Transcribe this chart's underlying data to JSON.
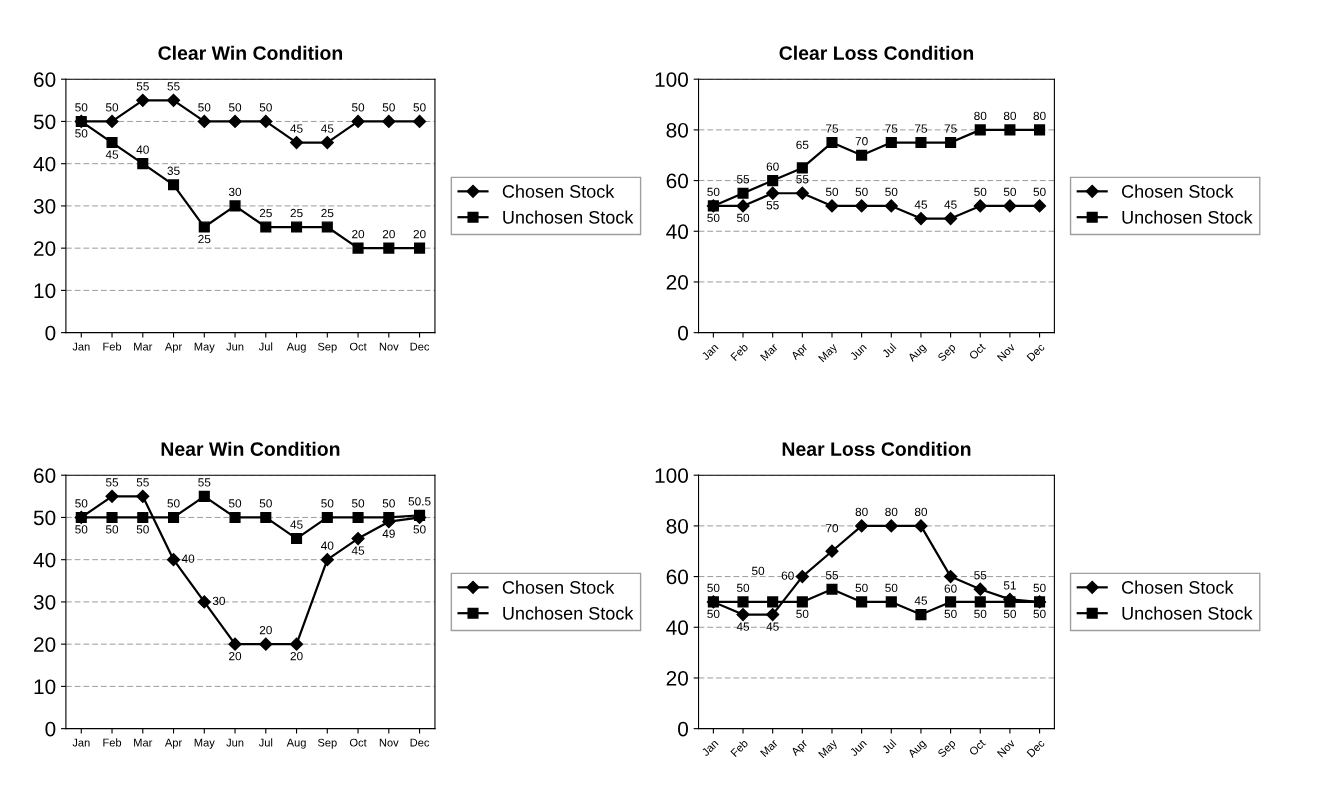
{
  "chart_data": [
    {
      "type": "line",
      "title": "Clear Win Condition",
      "categories": [
        "Jan",
        "Feb",
        "Mar",
        "Apr",
        "May",
        "Jun",
        "Jul",
        "Aug",
        "Sep",
        "Oct",
        "Nov",
        "Dec"
      ],
      "ylim": [
        0,
        60
      ],
      "yticks": [
        0,
        10,
        20,
        30,
        40,
        50,
        60
      ],
      "grid": "y",
      "legend": "right",
      "data_labels": true,
      "series": [
        {
          "name": "Chosen Stock",
          "color": "#000000",
          "marker": "diamond",
          "values": [
            50,
            50,
            55,
            55,
            50,
            50,
            50,
            45,
            45,
            50,
            50,
            50
          ]
        },
        {
          "name": "Unchosen Stock",
          "color": "#000000",
          "marker": "square",
          "values": [
            50,
            45,
            40,
            35,
            25,
            30,
            25,
            25,
            25,
            20,
            20,
            20
          ]
        }
      ]
    },
    {
      "type": "line",
      "title": "Clear Loss Condition",
      "categories": [
        "Jan",
        "Feb",
        "Mar",
        "Apr",
        "May",
        "Jun",
        "Jul",
        "Aug",
        "Sep",
        "Oct",
        "Nov",
        "Dec"
      ],
      "ylim": [
        0,
        100
      ],
      "yticks": [
        0,
        20,
        40,
        60,
        80,
        100
      ],
      "grid": "y",
      "legend": "right",
      "data_labels": true,
      "series": [
        {
          "name": "Chosen Stock",
          "color": "#000000",
          "marker": "diamond",
          "values": [
            50,
            50,
            55,
            55,
            50,
            50,
            50,
            45,
            45,
            50,
            50,
            50
          ]
        },
        {
          "name": "Unchosen Stock",
          "color": "#000000",
          "marker": "square",
          "values": [
            50,
            55,
            60,
            65,
            75,
            70,
            75,
            75,
            75,
            80,
            80,
            80
          ]
        }
      ]
    },
    {
      "type": "line",
      "title": "Near Win Condition",
      "categories": [
        "Jan",
        "Feb",
        "Mar",
        "Apr",
        "May",
        "Jun",
        "Jul",
        "Aug",
        "Sep",
        "Oct",
        "Nov",
        "Dec"
      ],
      "ylim": [
        0,
        60
      ],
      "yticks": [
        0,
        10,
        20,
        30,
        40,
        50,
        60
      ],
      "grid": "y",
      "legend": "right",
      "data_labels": true,
      "series": [
        {
          "name": "Chosen Stock",
          "color": "#000000",
          "marker": "diamond",
          "values": [
            50,
            55,
            55,
            40,
            30,
            20,
            20,
            20,
            40,
            45,
            49,
            50
          ]
        },
        {
          "name": "Unchosen Stock",
          "color": "#000000",
          "marker": "square",
          "values": [
            50,
            50,
            50,
            50,
            55,
            50,
            50,
            45,
            50,
            50,
            50,
            50.5
          ]
        }
      ]
    },
    {
      "type": "line",
      "title": "Near Loss Condition",
      "categories": [
        "Jan",
        "Feb",
        "Mar",
        "Apr",
        "May",
        "Jun",
        "Jul",
        "Aug",
        "Sep",
        "Oct",
        "Nov",
        "Dec"
      ],
      "ylim": [
        0,
        100
      ],
      "yticks": [
        0,
        20,
        40,
        60,
        80,
        100
      ],
      "grid": "y",
      "legend": "right",
      "data_labels": true,
      "series": [
        {
          "name": "Chosen Stock",
          "color": "#000000",
          "marker": "diamond",
          "values": [
            50,
            45,
            45,
            60,
            70,
            80,
            80,
            80,
            60,
            55,
            51,
            50
          ]
        },
        {
          "name": "Unchosen Stock",
          "color": "#000000",
          "marker": "square",
          "values": [
            50,
            50,
            50,
            50,
            55,
            50,
            50,
            45,
            50,
            50,
            50,
            50
          ]
        }
      ]
    }
  ]
}
